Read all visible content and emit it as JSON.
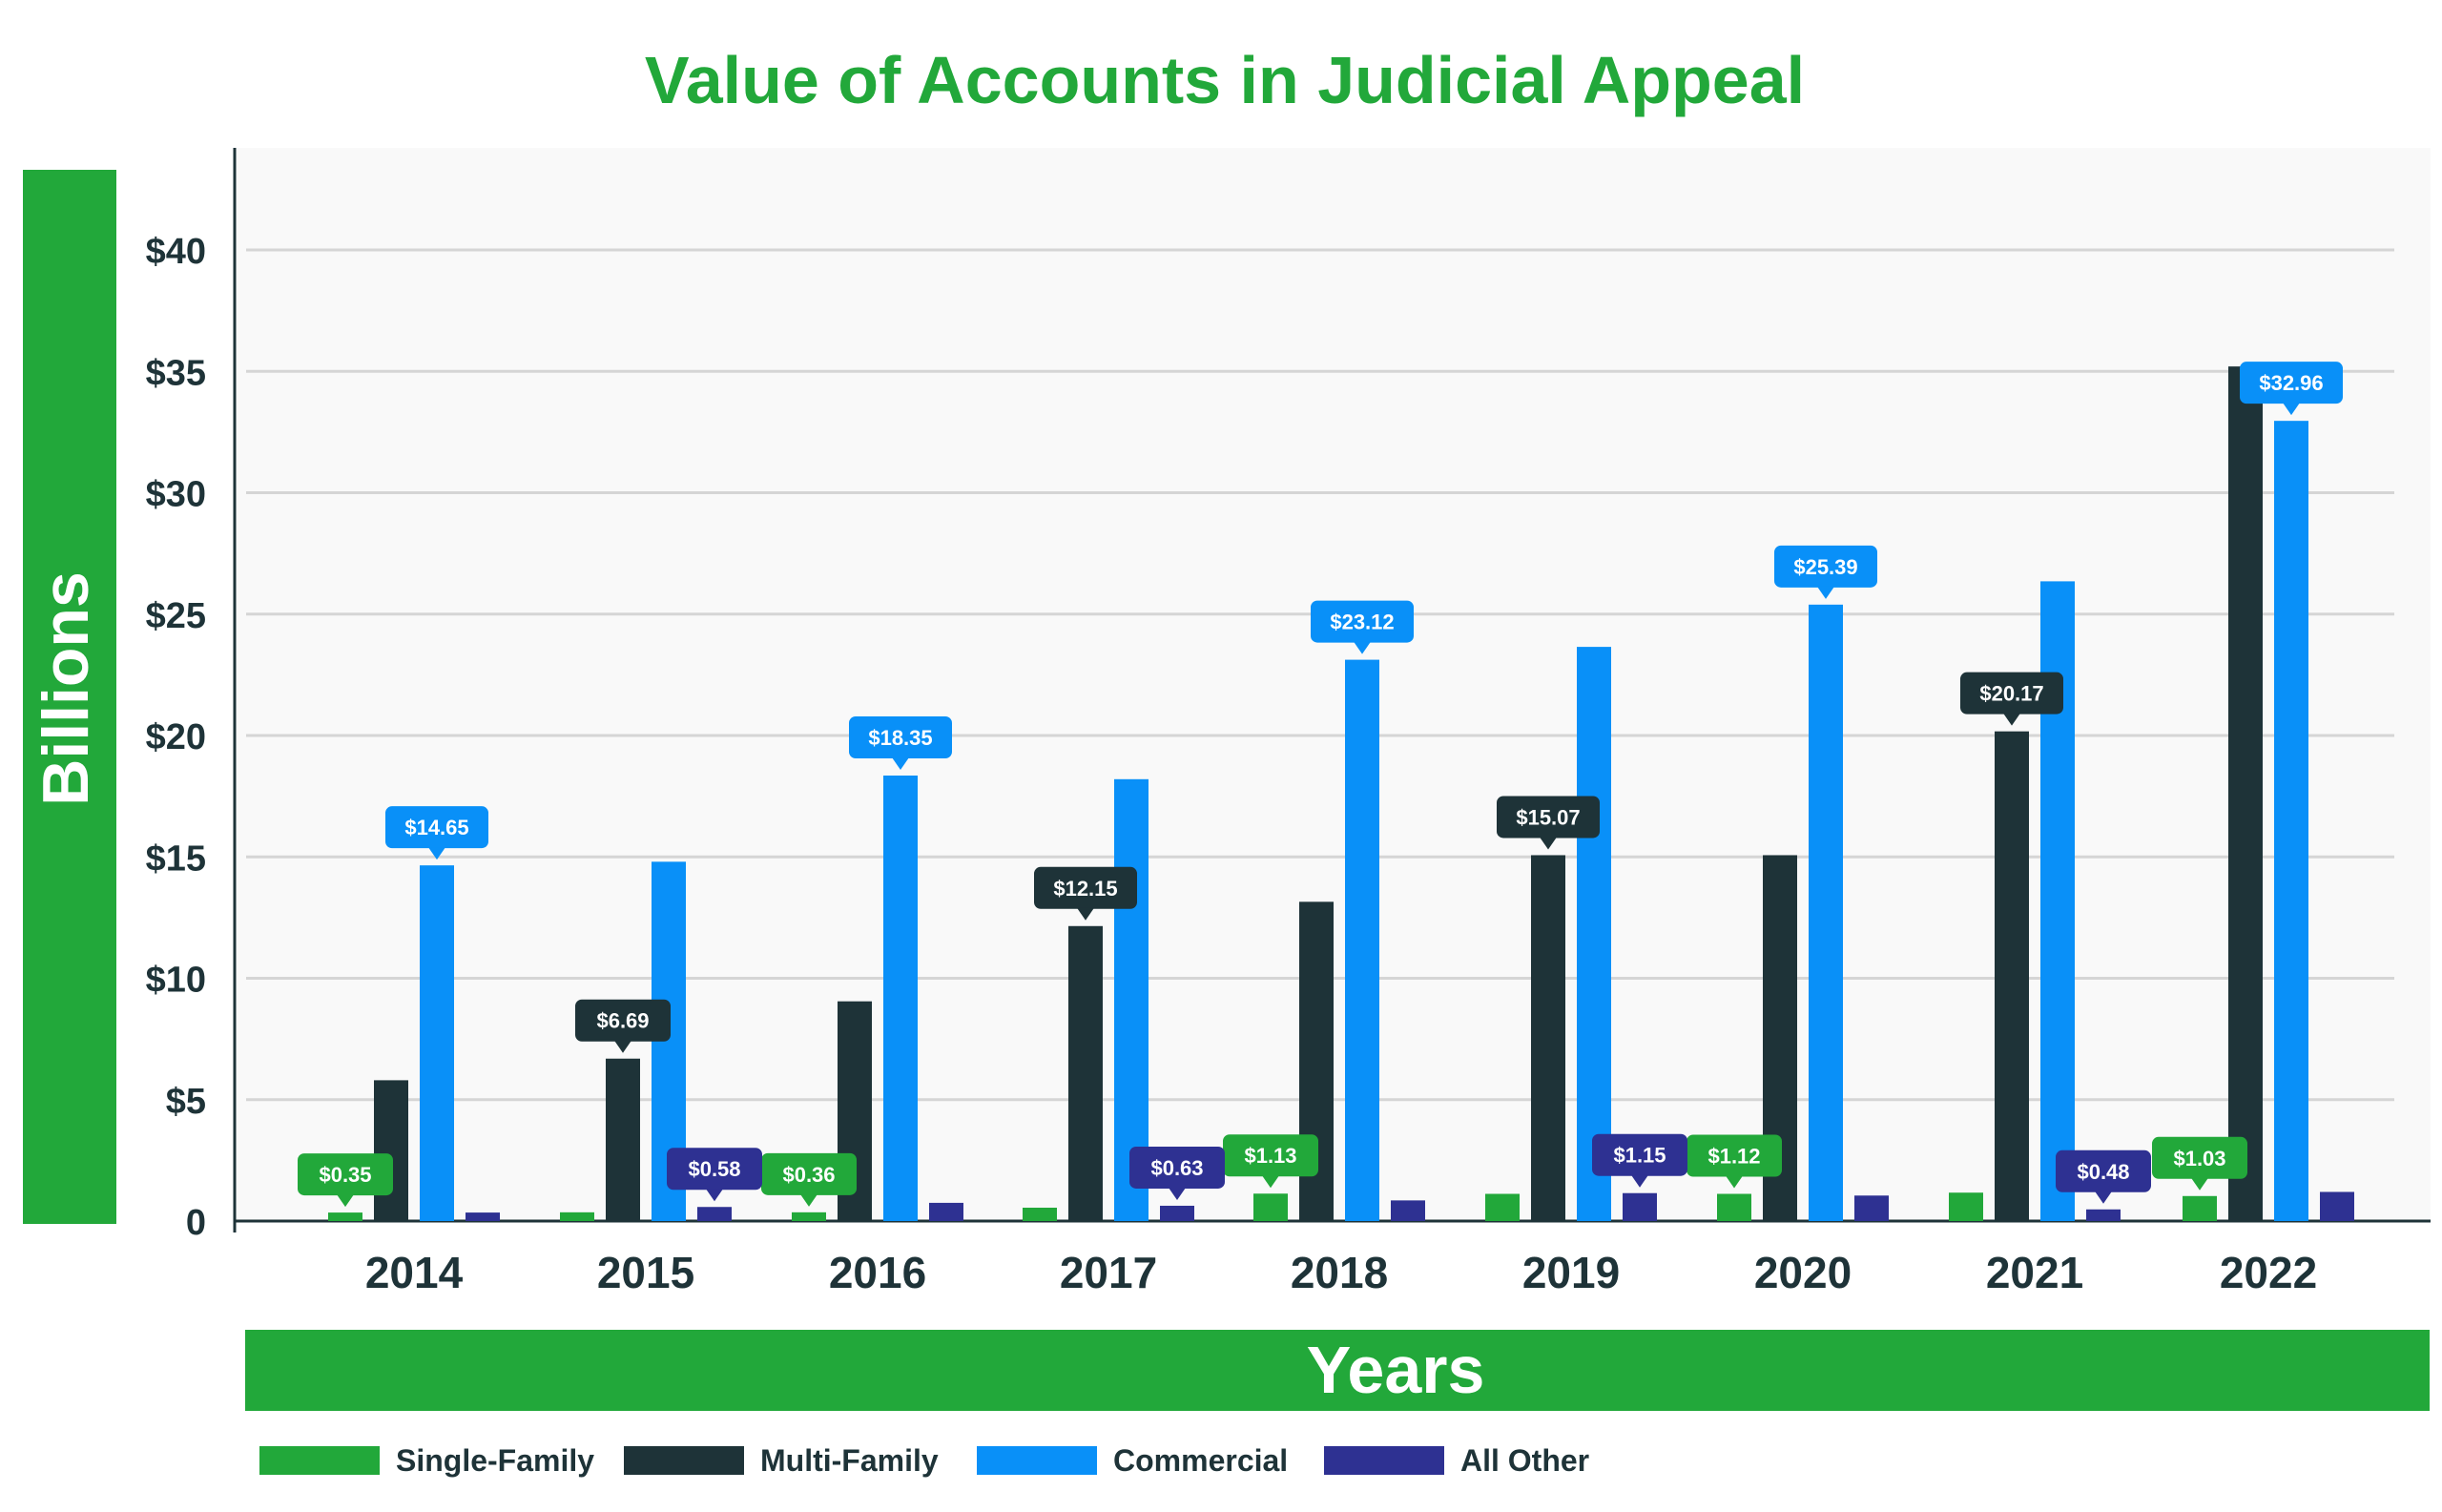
{
  "chart_data": {
    "type": "bar",
    "title": "Value of Accounts in Judicial Appeal",
    "xlabel": "Years",
    "ylabel": "Billions",
    "ylim": [
      0,
      44
    ],
    "yticks": [
      0,
      5,
      10,
      15,
      20,
      25,
      30,
      35,
      40
    ],
    "ytick_labels": [
      "0",
      "$5",
      "$10",
      "$15",
      "$20",
      "$25",
      "$30",
      "$35",
      "$40"
    ],
    "grid": true,
    "legend": "bottom",
    "categories": [
      "2014",
      "2015",
      "2016",
      "2017",
      "2018",
      "2019",
      "2020",
      "2021",
      "2022"
    ],
    "series": [
      {
        "name": "Single-Family",
        "color": "#22a83a",
        "values": [
          0.35,
          0.36,
          0.36,
          0.55,
          1.13,
          1.12,
          1.12,
          1.17,
          1.03
        ],
        "data_labels": [
          "$0.35",
          null,
          "$0.36",
          null,
          "$1.13",
          null,
          "$1.12",
          null,
          "$1.03"
        ]
      },
      {
        "name": "Multi-Family",
        "color": "#1e3338",
        "values": [
          5.8,
          6.69,
          9.05,
          12.15,
          13.15,
          15.07,
          15.07,
          20.17,
          35.2
        ],
        "data_labels": [
          null,
          "$6.69",
          null,
          "$12.15",
          null,
          "$15.07",
          null,
          "$20.17",
          null
        ]
      },
      {
        "name": "Commercial",
        "color": "#0990f8",
        "values": [
          14.65,
          14.8,
          18.35,
          18.2,
          23.12,
          23.65,
          25.39,
          26.35,
          32.96
        ],
        "data_labels": [
          "$14.65",
          null,
          "$18.35",
          null,
          "$23.12",
          null,
          "$25.39",
          null,
          "$32.96"
        ]
      },
      {
        "name": "All Other",
        "color": "#2e3192",
        "values": [
          0.35,
          0.58,
          0.75,
          0.63,
          0.85,
          1.15,
          1.05,
          0.48,
          1.2
        ],
        "data_labels": [
          null,
          "$0.58",
          null,
          "$0.63",
          null,
          "$1.15",
          null,
          "$0.48",
          null
        ]
      }
    ]
  }
}
